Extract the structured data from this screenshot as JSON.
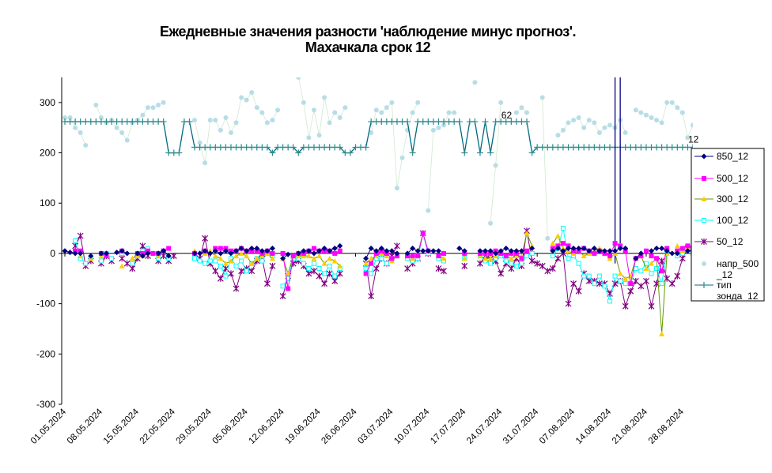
{
  "chart_data": {
    "type": "line",
    "title": "Ежедневные значения разности 'наблюдение минус прогноз'.",
    "subtitle": "Махачкала    срок 12",
    "ylim": [
      -300,
      350
    ],
    "yticks": [
      -300,
      -200,
      -100,
      0,
      100,
      200,
      300
    ],
    "xrange": [
      0,
      121
    ],
    "xticks": [
      {
        "label": "01.05.2024",
        "x": 0
      },
      {
        "label": "08.05.2024",
        "x": 7
      },
      {
        "label": "15.05.2024",
        "x": 14
      },
      {
        "label": "22.05.2024",
        "x": 21
      },
      {
        "label": "29.05.2024",
        "x": 28
      },
      {
        "label": "05.06.2024",
        "x": 35
      },
      {
        "label": "12.06.2024",
        "x": 42
      },
      {
        "label": "19.06.2024",
        "x": 49
      },
      {
        "label": "26.06.2024",
        "x": 56
      },
      {
        "label": "03.07.2024",
        "x": 63
      },
      {
        "label": "10.07.2024",
        "x": 70
      },
      {
        "label": "17.07.2024",
        "x": 77
      },
      {
        "label": "24.07.2024",
        "x": 84
      },
      {
        "label": "31.07.2024",
        "x": 91
      },
      {
        "label": "07.08.2024",
        "x": 98
      },
      {
        "label": "14.08.2024",
        "x": 105
      },
      {
        "label": "21.08.2024",
        "x": 112
      },
      {
        "label": "28.08.2024",
        "x": 119
      }
    ],
    "annotations": [
      {
        "text": "62",
        "x": 85,
        "y": 275
      },
      {
        "text": "12",
        "x": 121,
        "y": 227
      }
    ],
    "colors": {
      "850_12": "#000080",
      "500_12": "#ff00ff",
      "300_12": "#ffcc00",
      "100_12": "#00ffff",
      "50_12": "#800080",
      "napr_500": "#b8dde6",
      "tip": "#006b80",
      "tip_marker": "#2e8b8b"
    },
    "series": [
      {
        "key": "850_12",
        "name": "850_12",
        "values": [
          5,
          2,
          0,
          0,
          null,
          -5,
          null,
          0,
          0,
          null,
          2,
          5,
          0,
          null,
          0,
          -5,
          0,
          null,
          0,
          5,
          -5,
          null,
          null,
          null,
          null,
          0,
          0,
          5,
          0,
          5,
          0,
          5,
          0,
          5,
          10,
          5,
          10,
          10,
          5,
          5,
          10,
          null,
          -10,
          -2,
          null,
          0,
          5,
          5,
          0,
          5,
          10,
          5,
          10,
          15,
          null,
          null,
          null,
          null,
          -10,
          10,
          5,
          10,
          5,
          5,
          0,
          null,
          0,
          10,
          5,
          5,
          5,
          5,
          5,
          null,
          null,
          null,
          10,
          5,
          null,
          null,
          5,
          5,
          5,
          0,
          5,
          10,
          5,
          5,
          5,
          null,
          10,
          null,
          null,
          null,
          5,
          10,
          5,
          10,
          10,
          10,
          10,
          5,
          10,
          5,
          5,
          5,
          5,
          10,
          10,
          null,
          -10,
          0,
          null,
          5,
          10,
          10,
          5,
          0,
          0,
          null,
          5,
          5,
          null,
          10,
          10,
          null,
          5
        ]
      },
      {
        "key": "500_12",
        "name": "500_12",
        "values": [
          null,
          null,
          5,
          5,
          null,
          null,
          null,
          0,
          -5,
          null,
          null,
          5,
          null,
          null,
          0,
          0,
          5,
          0,
          0,
          5,
          10,
          null,
          null,
          null,
          null,
          0,
          null,
          5,
          null,
          10,
          10,
          10,
          5,
          5,
          10,
          5,
          5,
          5,
          0,
          5,
          0,
          null,
          0,
          -70,
          -5,
          0,
          0,
          5,
          10,
          5,
          5,
          5,
          0,
          5,
          null,
          null,
          null,
          null,
          -40,
          -20,
          0,
          5,
          0,
          -10,
          -5,
          null,
          -5,
          -5,
          -5,
          40,
          5,
          null,
          -5,
          0,
          null,
          null,
          null,
          0,
          null,
          null,
          0,
          0,
          0,
          5,
          0,
          -5,
          0,
          0,
          -10,
          5,
          null,
          null,
          null,
          null,
          10,
          15,
          20,
          15,
          5,
          5,
          10,
          5,
          0,
          5,
          0,
          -5,
          20,
          15,
          5,
          -60,
          -10,
          -5,
          5,
          -5,
          -10,
          -35,
          10,
          null,
          5,
          10,
          15,
          10,
          15
        ]
      },
      {
        "key": "300_12",
        "name": "300_12",
        "values": [
          null,
          null,
          null,
          -5,
          null,
          -10,
          null,
          -5,
          null,
          null,
          null,
          -25,
          null,
          -10,
          -5,
          -5,
          0,
          null,
          -5,
          5,
          null,
          null,
          null,
          null,
          null,
          5,
          null,
          0,
          5,
          -5,
          -10,
          -20,
          -15,
          -5,
          0,
          -5,
          -20,
          -10,
          -5,
          0,
          -10,
          null,
          -10,
          -40,
          -5,
          -5,
          -5,
          -5,
          -10,
          -5,
          -20,
          -10,
          -15,
          -25,
          null,
          null,
          null,
          null,
          -20,
          -10,
          -5,
          0,
          -5,
          -15,
          -5,
          null,
          -5,
          -10,
          0,
          40,
          5,
          null,
          -5,
          -10,
          null,
          null,
          null,
          -10,
          null,
          null,
          -5,
          -10,
          -10,
          -5,
          0,
          -5,
          -10,
          -5,
          -5,
          40,
          15,
          null,
          null,
          null,
          20,
          35,
          10,
          5,
          0,
          5,
          -5,
          0,
          5,
          10,
          5,
          -10,
          0,
          -40,
          -50,
          -45,
          -10,
          -5,
          -30,
          -20,
          -10,
          -160,
          0,
          null,
          15,
          5,
          10,
          0,
          5
        ]
      },
      {
        "key": "100_12",
        "name": "100_12",
        "values": [
          null,
          null,
          25,
          -10,
          -20,
          -10,
          null,
          -15,
          0,
          -10,
          null,
          0,
          null,
          -20,
          -5,
          5,
          10,
          null,
          -10,
          5,
          -10,
          null,
          null,
          null,
          null,
          -10,
          -15,
          -20,
          -15,
          -15,
          -25,
          -45,
          -10,
          -25,
          -15,
          -35,
          -20,
          -10,
          -15,
          0,
          -5,
          null,
          -65,
          -50,
          -10,
          -10,
          -20,
          -30,
          -20,
          -30,
          -40,
          -25,
          -45,
          -30,
          null,
          null,
          null,
          null,
          -30,
          -40,
          -10,
          -10,
          -20,
          -10,
          -5,
          null,
          -10,
          -15,
          -10,
          40,
          0,
          null,
          -10,
          -15,
          null,
          null,
          null,
          -10,
          null,
          null,
          -5,
          -15,
          -20,
          -10,
          -5,
          -15,
          -20,
          -25,
          -20,
          -5,
          0,
          null,
          null,
          null,
          -5,
          10,
          50,
          -10,
          -5,
          -20,
          -45,
          -45,
          -60,
          -45,
          -65,
          -95,
          -45,
          -55,
          -60,
          -60,
          -30,
          -35,
          -20,
          -40,
          -30,
          -60,
          5,
          null,
          -5,
          0,
          10,
          5,
          5
        ]
      },
      {
        "key": "50_12",
        "name": "50_12",
        "values": [
          null,
          null,
          15,
          35,
          -25,
          -15,
          null,
          -20,
          -5,
          -15,
          null,
          -10,
          -20,
          -30,
          -10,
          15,
          -5,
          null,
          -15,
          -5,
          -15,
          -5,
          null,
          null,
          null,
          null,
          -10,
          30,
          -20,
          -35,
          -50,
          -30,
          -40,
          -70,
          -35,
          -30,
          -35,
          -15,
          -10,
          -60,
          -25,
          null,
          -85,
          -45,
          -20,
          -15,
          -25,
          -40,
          -35,
          -45,
          -60,
          -40,
          -55,
          -40,
          null,
          null,
          null,
          null,
          -20,
          -85,
          -30,
          -10,
          -20,
          -5,
          15,
          null,
          -30,
          -20,
          -10,
          40,
          0,
          null,
          -30,
          -35,
          null,
          null,
          null,
          -25,
          null,
          null,
          -20,
          -5,
          -10,
          -15,
          -40,
          -20,
          -30,
          -10,
          -25,
          45,
          -15,
          -20,
          -25,
          -35,
          -30,
          -10,
          0,
          -100,
          -60,
          -75,
          -40,
          -55,
          -55,
          -60,
          -60,
          -80,
          -60,
          -55,
          -105,
          -75,
          -55,
          -65,
          -55,
          -105,
          -60,
          -15,
          -50,
          -60,
          -45,
          -10,
          10
        ]
      },
      {
        "key": "napr_500",
        "name": "напр_500_12",
        "values": [
          270,
          270,
          250,
          240,
          215,
          null,
          295,
          270,
          260,
          265,
          250,
          240,
          225,
          260,
          265,
          275,
          290,
          290,
          295,
          300,
          null,
          null,
          null,
          null,
          null,
          265,
          220,
          180,
          265,
          265,
          245,
          270,
          240,
          260,
          310,
          305,
          320,
          290,
          280,
          260,
          265,
          285,
          null,
          null,
          null,
          350,
          300,
          230,
          285,
          235,
          310,
          260,
          280,
          270,
          290,
          null,
          null,
          null,
          null,
          240,
          285,
          280,
          290,
          300,
          130,
          190,
          245,
          280,
          300,
          null,
          85,
          245,
          250,
          255,
          280,
          280,
          null,
          null,
          null,
          340,
          null,
          null,
          60,
          175,
          300,
          null,
          null,
          280,
          290,
          280,
          null,
          null,
          310,
          30,
          null,
          235,
          245,
          260,
          265,
          270,
          250,
          265,
          260,
          240,
          250,
          255,
          250,
          265,
          240,
          null,
          285,
          280,
          275,
          270,
          265,
          260,
          300,
          300,
          290,
          280,
          230,
          255,
          260,
          null,
          null,
          null,
          null
        ]
      },
      {
        "key": "tip",
        "name": "тип зонда_12",
        "values": [
          262,
          262,
          262,
          262,
          262,
          262,
          262,
          262,
          262,
          262,
          262,
          262,
          262,
          262,
          262,
          262,
          262,
          262,
          262,
          262,
          200,
          200,
          200,
          262,
          262,
          211,
          211,
          211,
          211,
          211,
          211,
          211,
          211,
          211,
          211,
          211,
          211,
          211,
          211,
          211,
          200,
          211,
          211,
          211,
          211,
          200,
          211,
          211,
          211,
          211,
          211,
          211,
          211,
          211,
          200,
          200,
          211,
          211,
          211,
          262,
          262,
          262,
          262,
          262,
          262,
          262,
          262,
          200,
          262,
          262,
          262,
          262,
          262,
          262,
          262,
          262,
          262,
          200,
          262,
          262,
          200,
          262,
          200,
          262,
          262,
          262,
          262,
          262,
          262,
          262,
          200,
          211,
          211,
          211,
          211,
          211,
          211,
          211,
          211,
          211,
          211,
          211,
          211,
          211,
          211,
          211,
          211,
          211,
          211,
          211,
          211,
          211,
          211,
          211,
          211,
          211,
          211,
          211,
          211,
          211,
          211,
          211
        ]
      }
    ],
    "spikes": [
      {
        "x": 106,
        "top": 350,
        "bottom": -20,
        "color": "#000080"
      },
      {
        "x": 107,
        "top": 350,
        "bottom": 20,
        "color": "#000080"
      }
    ],
    "legend_position": "right"
  },
  "legend_items": [
    {
      "key": "850_12",
      "label": "850_12"
    },
    {
      "key": "500_12",
      "label": "500_12"
    },
    {
      "key": "300_12",
      "label": "300_12"
    },
    {
      "key": "100_12",
      "label": "100_12"
    },
    {
      "key": "50_12",
      "label": "50_12"
    },
    {
      "key": "napr_500",
      "label1": "напр_500",
      "label2": "_12"
    },
    {
      "key": "tip",
      "label1": "тип",
      "label2": "зонда_12"
    }
  ]
}
